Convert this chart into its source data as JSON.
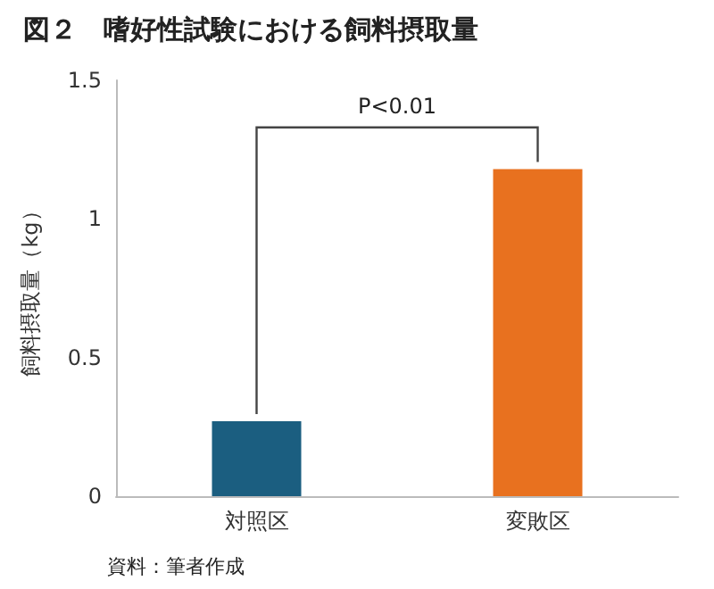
{
  "chart_data": {
    "type": "bar",
    "title": "図２　嗜好性試験における飼料摂取量",
    "ylabel": "飼料摂取量（kg）",
    "categories": [
      "対照区",
      "変敗区"
    ],
    "values": [
      0.27,
      1.18
    ],
    "colors": [
      "#1b5e80",
      "#e8711f"
    ],
    "ylim": [
      0,
      1.5
    ],
    "yticks": [
      0,
      0.5,
      1,
      1.5
    ],
    "grid": false,
    "annotations": [
      "P<0.01",
      "資料：筆者作成"
    ]
  }
}
